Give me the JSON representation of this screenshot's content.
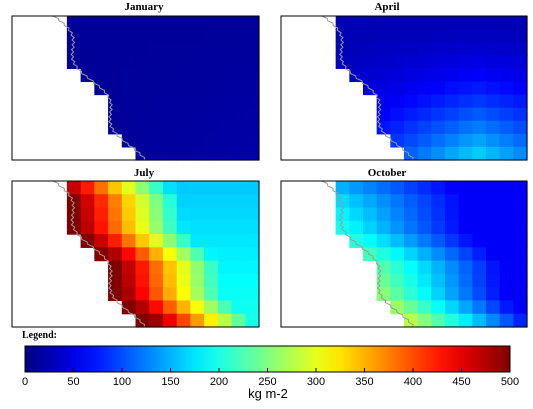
{
  "chart_data": [
    {
      "type": "heatmap",
      "title": "January",
      "grid": false,
      "summary": "uniform dark blue over ocean cells",
      "value_range": [
        0,
        40
      ],
      "coast_side": "west-white-land",
      "color_min": 10,
      "color_max": 30
    },
    {
      "type": "heatmap",
      "title": "April",
      "grid": false,
      "value_range": [
        20,
        170
      ],
      "color_min": 20,
      "color_max": 170
    },
    {
      "type": "heatmap",
      "title": "July",
      "grid": false,
      "value_range": [
        150,
        500
      ],
      "color_min": 150,
      "color_max": 500
    },
    {
      "type": "heatmap",
      "title": "October",
      "grid": false,
      "value_range": [
        50,
        350
      ],
      "color_min": 50,
      "color_max": 350
    }
  ],
  "legend": {
    "title": "Legend:",
    "unit": "kg m-2",
    "min": 0,
    "max": 500,
    "ticks": [
      "0",
      "50",
      "100",
      "150",
      "200",
      "250",
      "300",
      "350",
      "400",
      "450",
      "500"
    ],
    "colormap": "jet"
  }
}
